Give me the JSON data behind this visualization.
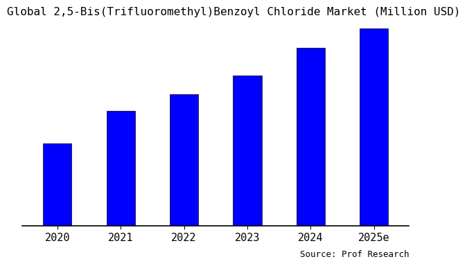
{
  "title": "Global 2,5-Bis(Trifluoromethyl)Benzoyl Chloride Market (Million USD)",
  "categories": [
    "2020",
    "2021",
    "2022",
    "2023",
    "2024",
    "2025e"
  ],
  "values": [
    30,
    42,
    48,
    55,
    65,
    72
  ],
  "bar_color": "#0000FF",
  "background_color": "#ffffff",
  "source_text": "Source: Prof Research",
  "title_fontsize": 11.5,
  "tick_fontsize": 11,
  "source_fontsize": 9
}
